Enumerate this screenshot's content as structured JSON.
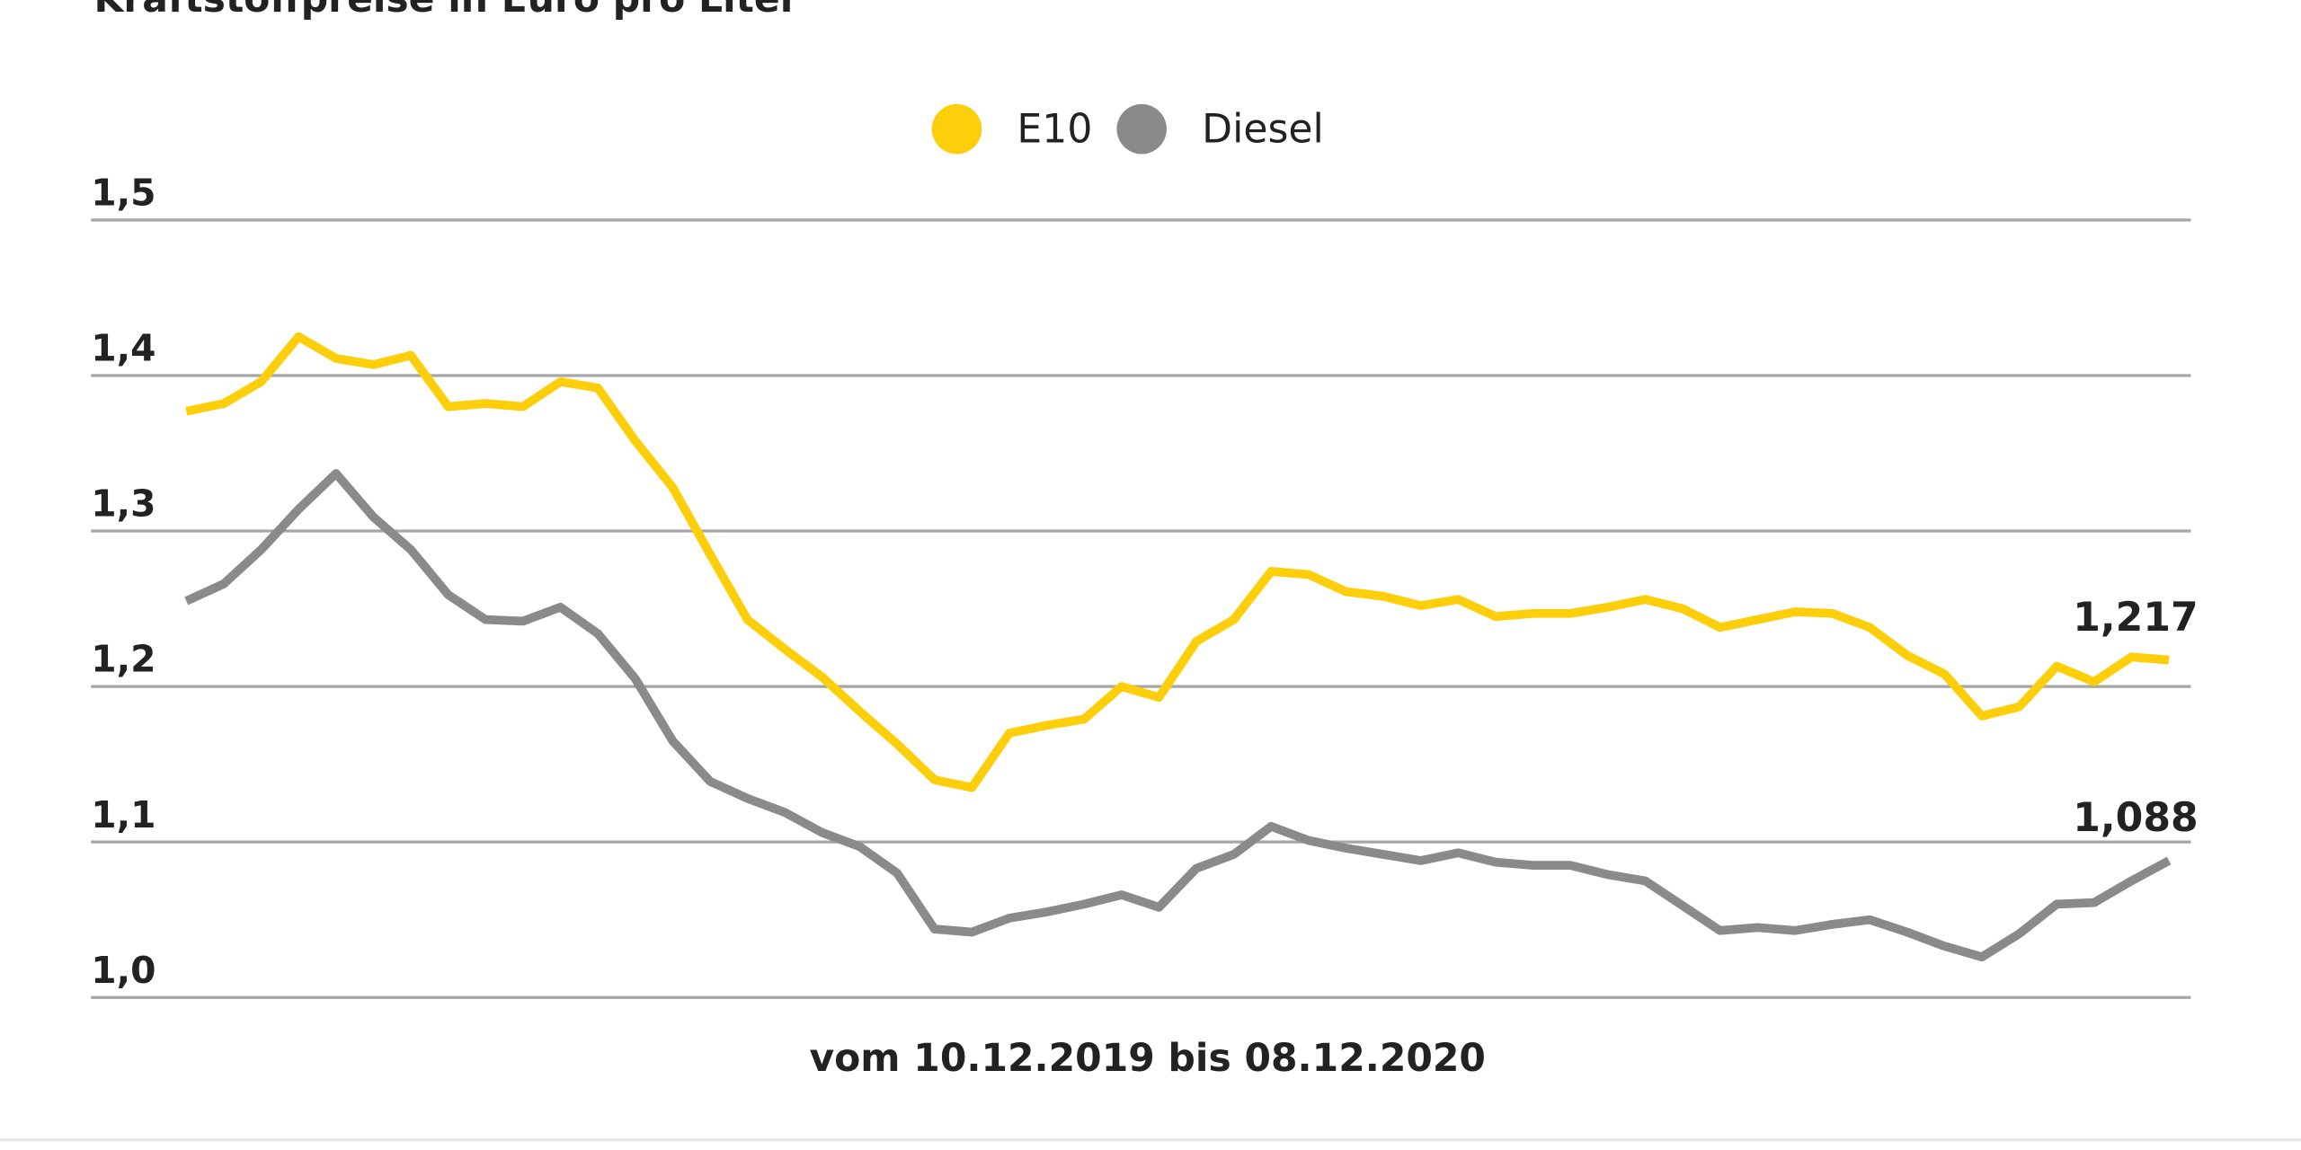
{
  "chart_data": {
    "type": "line",
    "title": "Kraftstoffpreise in Euro pro Liter",
    "xlabel": "vom 10.12.2019 bis 08.12.2020",
    "categories": [
      null,
      null,
      null,
      null,
      null,
      null,
      null,
      null,
      null,
      null,
      null,
      null,
      null,
      null,
      null,
      null,
      null,
      null,
      null,
      null,
      null,
      null,
      null,
      null,
      null,
      null,
      null,
      null,
      null,
      null,
      null,
      null,
      null,
      null,
      null,
      null,
      null,
      null,
      null,
      null,
      null,
      null,
      null,
      null,
      null,
      null,
      null,
      null,
      null,
      null,
      null,
      null,
      null,
      null
    ],
    "series": [
      {
        "name": "E10",
        "color": "#fccf0a",
        "values": [
          1.377,
          1.382,
          1.396,
          1.425,
          1.411,
          1.407,
          1.413,
          1.38,
          1.382,
          1.38,
          1.396,
          1.392,
          1.358,
          1.328,
          1.285,
          1.243,
          1.224,
          1.206,
          1.184,
          1.163,
          1.14,
          1.135,
          1.17,
          1.175,
          1.179,
          1.2,
          1.193,
          1.229,
          1.243,
          1.274,
          1.272,
          1.261,
          1.258,
          1.252,
          1.256,
          1.245,
          1.247,
          1.247,
          1.251,
          1.256,
          1.25,
          1.238,
          1.243,
          1.248,
          1.247,
          1.238,
          1.22,
          1.208,
          1.181,
          1.187,
          1.213,
          1.203,
          1.219,
          1.217
        ],
        "value_labels": [
          null,
          null,
          null,
          null,
          null,
          null,
          null,
          null,
          null,
          null,
          null,
          null,
          null,
          null,
          null,
          null,
          null,
          null,
          null,
          null,
          null,
          null,
          null,
          null,
          null,
          null,
          null,
          null,
          null,
          null,
          null,
          null,
          null,
          null,
          null,
          null,
          null,
          null,
          null,
          null,
          null,
          null,
          null,
          null,
          null,
          null,
          null,
          null,
          null,
          null,
          null,
          null,
          null,
          "1,217"
        ]
      },
      {
        "name": "Diesel",
        "color": "#8a8a8a",
        "values": [
          1.255,
          1.266,
          1.288,
          1.314,
          1.337,
          1.309,
          1.288,
          1.259,
          1.243,
          1.242,
          1.251,
          1.234,
          1.205,
          1.165,
          1.139,
          1.128,
          1.119,
          1.106,
          1.097,
          1.08,
          1.044,
          1.042,
          1.051,
          1.055,
          1.06,
          1.066,
          1.058,
          1.083,
          1.092,
          1.11,
          1.101,
          1.096,
          1.092,
          1.088,
          1.093,
          1.087,
          1.085,
          1.085,
          1.079,
          1.075,
          1.059,
          1.043,
          1.045,
          1.043,
          1.047,
          1.05,
          1.042,
          1.033,
          1.026,
          1.041,
          1.06,
          1.061,
          1.075,
          1.088
        ],
        "value_labels": [
          null,
          null,
          null,
          null,
          null,
          null,
          null,
          null,
          null,
          null,
          null,
          null,
          null,
          null,
          null,
          null,
          null,
          null,
          null,
          null,
          null,
          null,
          null,
          null,
          null,
          null,
          null,
          null,
          null,
          null,
          null,
          null,
          null,
          null,
          null,
          null,
          null,
          null,
          null,
          null,
          null,
          null,
          null,
          null,
          null,
          null,
          null,
          null,
          null,
          null,
          null,
          null,
          null,
          "1,088"
        ]
      }
    ],
    "ylim": [
      1.0,
      1.5
    ],
    "yticks": [
      {
        "value": 1.0,
        "label": "1,0"
      },
      {
        "value": 1.1,
        "label": "1,1"
      },
      {
        "value": 1.2,
        "label": "1,2"
      },
      {
        "value": 1.3,
        "label": "1,3"
      },
      {
        "value": 1.4,
        "label": "1,4"
      },
      {
        "value": 1.5,
        "label": "1,5"
      }
    ],
    "grid": true
  }
}
